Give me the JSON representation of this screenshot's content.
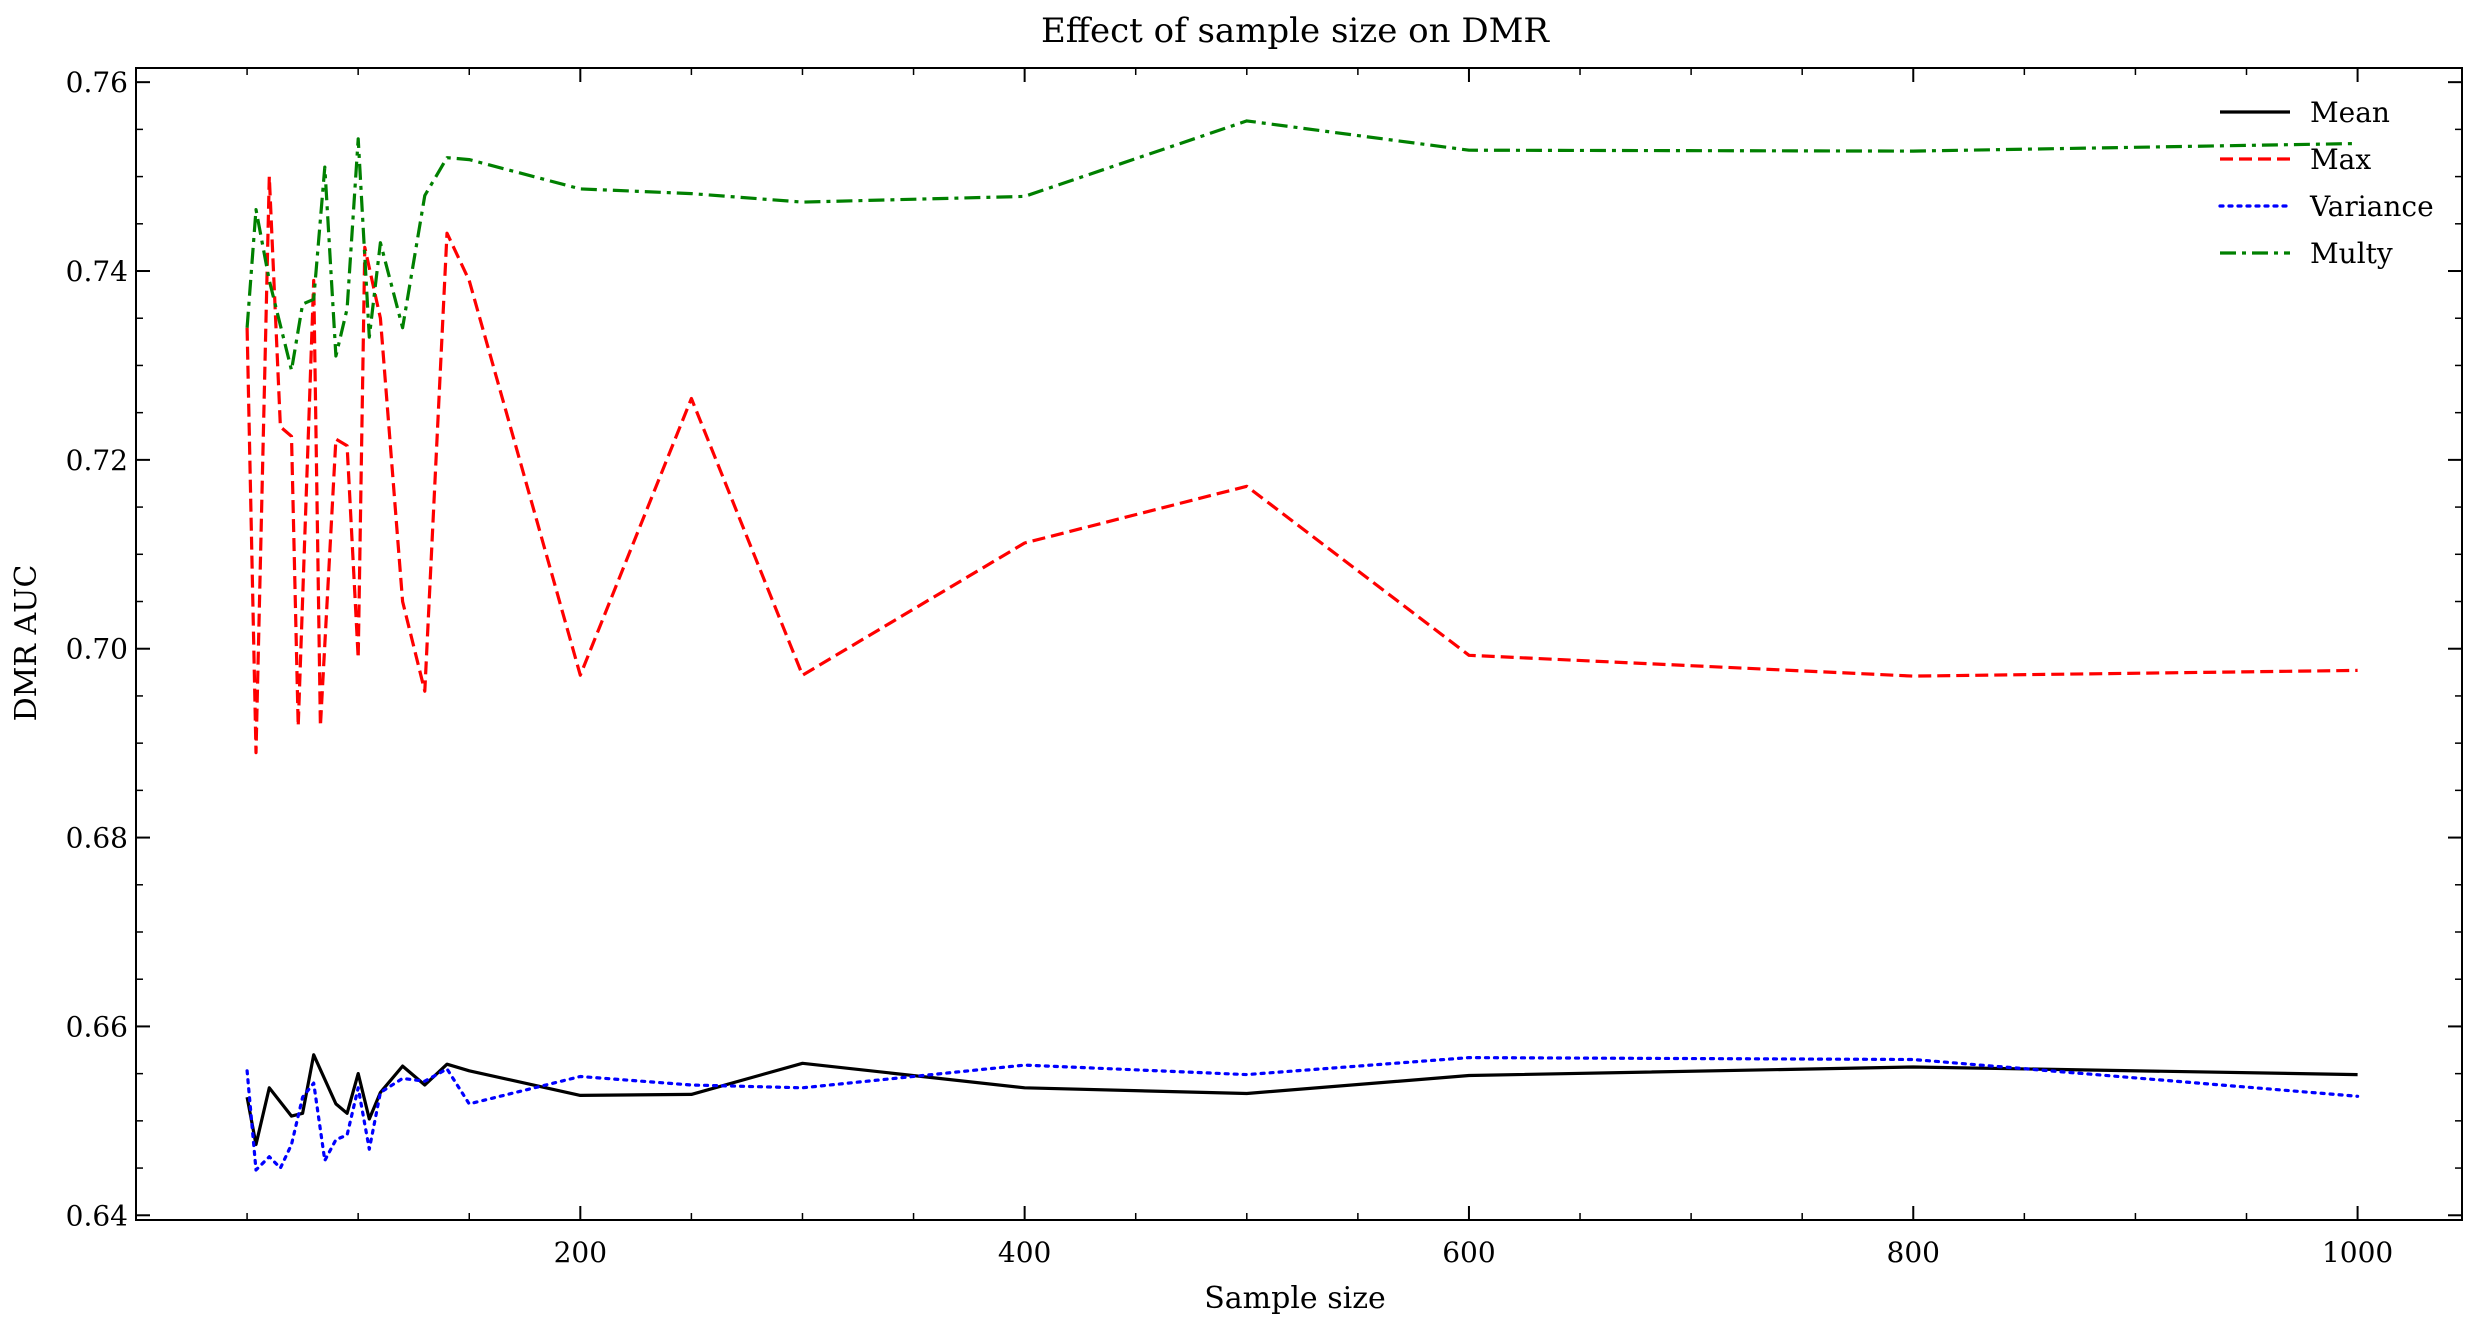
{
  "chart_data": {
    "type": "line",
    "title": "Effect of sample size on DMR",
    "xlabel": "Sample size",
    "ylabel": "DMR AUC",
    "xlim": [
      0,
      1047
    ],
    "ylim": [
      0.6395,
      0.7615
    ],
    "xticks": [
      200,
      400,
      600,
      800,
      1000
    ],
    "xtick_labels": [
      "200",
      "400",
      "600",
      "800",
      "1000"
    ],
    "yticks": [
      0.64,
      0.66,
      0.68,
      0.7,
      0.72,
      0.74,
      0.76
    ],
    "ytick_labels": [
      "0.64",
      "0.66",
      "0.68",
      "0.70",
      "0.72",
      "0.74",
      "0.76"
    ],
    "legend_position": "top-right",
    "grid": false,
    "series": [
      {
        "name": "Mean",
        "color": "#000000",
        "style": "solid",
        "x": [
          50,
          54,
          60,
          70,
          75,
          80,
          90,
          95,
          100,
          105,
          110,
          120,
          130,
          140,
          150,
          200,
          250,
          300,
          400,
          500,
          600,
          800,
          1000
        ],
        "y": [
          0.6525,
          0.6475,
          0.6535,
          0.6505,
          0.6508,
          0.657,
          0.6518,
          0.6508,
          0.655,
          0.6502,
          0.653,
          0.6558,
          0.6538,
          0.656,
          0.6553,
          0.6527,
          0.6528,
          0.6561,
          0.6535,
          0.6529,
          0.6548,
          0.6557,
          0.6549
        ]
      },
      {
        "name": "Max",
        "color": "#ff0000",
        "style": "dashed",
        "x": [
          50,
          54,
          60,
          65,
          70,
          73,
          80,
          83,
          90,
          95,
          100,
          103,
          110,
          120,
          130,
          140,
          150,
          200,
          250,
          300,
          400,
          500,
          600,
          800,
          1000
        ],
        "y": [
          0.734,
          0.689,
          0.75,
          0.7235,
          0.7225,
          0.6918,
          0.739,
          0.6918,
          0.7222,
          0.7215,
          0.699,
          0.7425,
          0.735,
          0.705,
          0.6955,
          0.744,
          0.739,
          0.6972,
          0.7265,
          0.6972,
          0.7112,
          0.7172,
          0.6993,
          0.6971,
          0.6977
        ]
      },
      {
        "name": "Variance",
        "color": "#0000ff",
        "style": "dotted",
        "x": [
          50,
          54,
          60,
          65,
          70,
          75,
          80,
          85,
          90,
          95,
          100,
          105,
          110,
          120,
          130,
          140,
          150,
          200,
          250,
          300,
          400,
          500,
          600,
          800,
          1000
        ],
        "y": [
          0.6553,
          0.6448,
          0.6462,
          0.645,
          0.6475,
          0.6525,
          0.654,
          0.6458,
          0.648,
          0.6485,
          0.6535,
          0.647,
          0.653,
          0.6545,
          0.6542,
          0.6555,
          0.6518,
          0.6547,
          0.6538,
          0.6535,
          0.6559,
          0.6549,
          0.6567,
          0.6565,
          0.6526
        ]
      },
      {
        "name": "Multy",
        "color": "#008000",
        "style": "dashdot",
        "x": [
          50,
          54,
          60,
          70,
          75,
          80,
          85,
          90,
          95,
          100,
          105,
          110,
          120,
          130,
          140,
          150,
          200,
          250,
          300,
          400,
          500,
          600,
          800,
          1000
        ],
        "y": [
          0.734,
          0.7465,
          0.739,
          0.7295,
          0.7365,
          0.737,
          0.751,
          0.731,
          0.736,
          0.754,
          0.733,
          0.743,
          0.734,
          0.748,
          0.752,
          0.7518,
          0.7487,
          0.7482,
          0.7473,
          0.7479,
          0.7559,
          0.7528,
          0.7527,
          0.7535
        ]
      }
    ]
  }
}
